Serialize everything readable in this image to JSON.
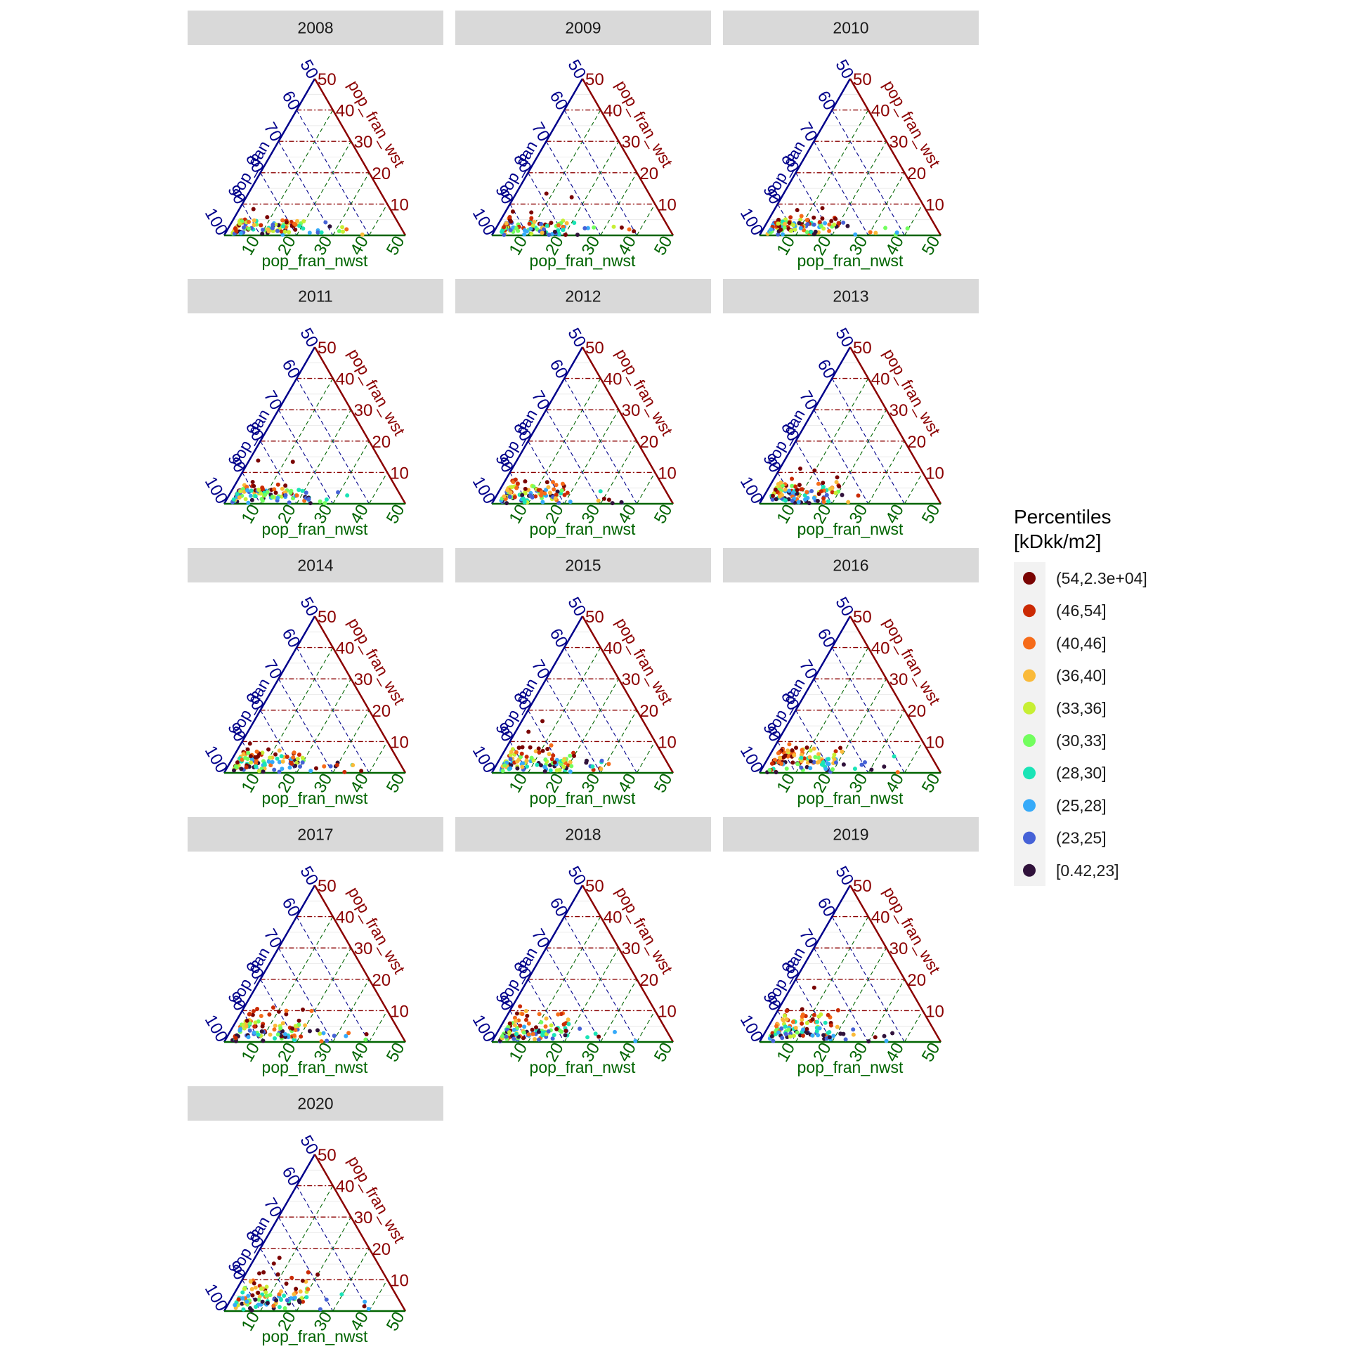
{
  "chart_data": {
    "type": "scatter",
    "subtype": "ternary-facets",
    "axes": {
      "left": {
        "label": "pop_dan",
        "color": "#00008B",
        "ticks": [
          50,
          60,
          70,
          80,
          90,
          100
        ]
      },
      "right": {
        "label": "pop_fran_wst",
        "color": "#8B0000",
        "ticks": [
          10,
          20,
          30,
          40,
          50
        ]
      },
      "bottom": {
        "label": "pop_fran_nwst",
        "color": "#006400",
        "ticks": [
          10,
          20,
          30,
          40,
          50
        ]
      }
    },
    "ranges": {
      "pop_dan": [
        50,
        100
      ],
      "pop_fran_wst": [
        0,
        50
      ],
      "pop_fran_nwst": [
        0,
        50
      ]
    },
    "grid": true,
    "legend": {
      "title": [
        "Percentiles",
        "[kDkk/m2]"
      ],
      "position": "right",
      "entries": [
        {
          "label": "(54,2.3e+04]",
          "color": "#7A0403"
        },
        {
          "label": "(46,54]",
          "color": "#CB2A04"
        },
        {
          "label": "(40,46]",
          "color": "#F66B19"
        },
        {
          "label": "(36,40]",
          "color": "#FABA39"
        },
        {
          "label": "(33,36]",
          "color": "#C7EF34"
        },
        {
          "label": "(30,33]",
          "color": "#72FE5E"
        },
        {
          "label": "(28,30]",
          "color": "#1AE4B6"
        },
        {
          "label": "(25,28]",
          "color": "#36AAF9"
        },
        {
          "label": "(23,25]",
          "color": "#4662D7"
        },
        {
          "label": "[0.42,23]",
          "color": "#30123B"
        }
      ]
    },
    "panels": [
      {
        "year": "2008"
      },
      {
        "year": "2009"
      },
      {
        "year": "2010"
      },
      {
        "year": "2011"
      },
      {
        "year": "2012"
      },
      {
        "year": "2013"
      },
      {
        "year": "2014"
      },
      {
        "year": "2015"
      },
      {
        "year": "2016"
      },
      {
        "year": "2017"
      },
      {
        "year": "2018"
      },
      {
        "year": "2019"
      },
      {
        "year": "2020"
      }
    ]
  }
}
